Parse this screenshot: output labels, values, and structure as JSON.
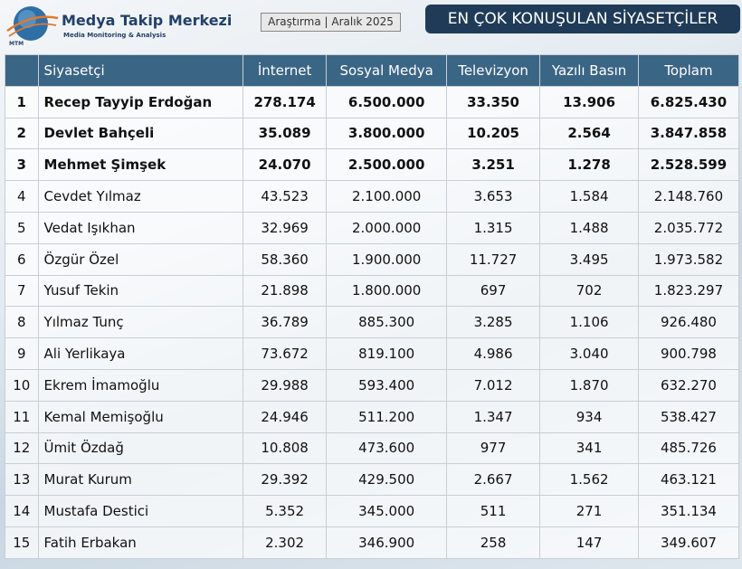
{
  "header": {
    "logo_mark": "MTM",
    "logo_title": "Medya Takip Merkezi",
    "logo_subtitle": "Media Monitoring & Analysis",
    "tag": "Araştırma | Aralık 2025",
    "title": "EN ÇOK KONUŞULAN SİYASETÇİLER"
  },
  "table": {
    "columns": [
      "Siyasetçi",
      "İnternet",
      "Sosyal Medya",
      "Televizyon",
      "Yazılı Basın",
      "Toplam"
    ],
    "rows": [
      [
        "1",
        "Recep Tayyip Erdoğan",
        "278.174",
        "6.500.000",
        "33.350",
        "13.906",
        "6.825.430"
      ],
      [
        "2",
        "Devlet Bahçeli",
        "35.089",
        "3.800.000",
        "10.205",
        "2.564",
        "3.847.858"
      ],
      [
        "3",
        "Mehmet Şimşek",
        "24.070",
        "2.500.000",
        "3.251",
        "1.278",
        "2.528.599"
      ],
      [
        "4",
        "Cevdet Yılmaz",
        "43.523",
        "2.100.000",
        "3.653",
        "1.584",
        "2.148.760"
      ],
      [
        "5",
        "Vedat Işıkhan",
        "32.969",
        "2.000.000",
        "1.315",
        "1.488",
        "2.035.772"
      ],
      [
        "6",
        "Özgür Özel",
        "58.360",
        "1.900.000",
        "11.727",
        "3.495",
        "1.973.582"
      ],
      [
        "7",
        "Yusuf Tekin",
        "21.898",
        "1.800.000",
        "697",
        "702",
        "1.823.297"
      ],
      [
        "8",
        "Yılmaz Tunç",
        "36.789",
        "885.300",
        "3.285",
        "1.106",
        "926.480"
      ],
      [
        "9",
        "Ali Yerlikaya",
        "73.672",
        "819.100",
        "4.986",
        "3.040",
        "900.798"
      ],
      [
        "10",
        "Ekrem İmamoğlu",
        "29.988",
        "593.400",
        "7.012",
        "1.870",
        "632.270"
      ],
      [
        "11",
        "Kemal Memişoğlu",
        "24.946",
        "511.200",
        "1.347",
        "934",
        "538.427"
      ],
      [
        "12",
        "Ümit Özdağ",
        "10.808",
        "473.600",
        "977",
        "341",
        "485.726"
      ],
      [
        "13",
        "Murat Kurum",
        "29.392",
        "429.500",
        "2.667",
        "1.562",
        "463.121"
      ],
      [
        "14",
        "Mustafa Destici",
        "5.352",
        "345.000",
        "511",
        "271",
        "351.134"
      ],
      [
        "15",
        "Fatih Erbakan",
        "2.302",
        "346.900",
        "258",
        "147",
        "349.607"
      ]
    ]
  }
}
